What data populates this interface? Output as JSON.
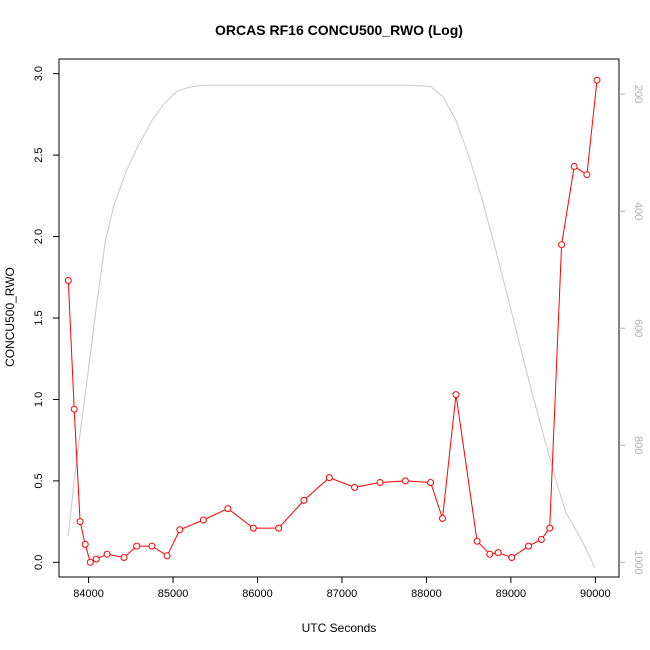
{
  "chart_data": {
    "type": "line",
    "title": "ORCAS RF16 CONCU500_RWO (Log)",
    "xlabel": "UTC Seconds",
    "ylabel": "CONCU500_RWO",
    "xlim": [
      83650,
      90280
    ],
    "ylim": [
      -0.09,
      3.09
    ],
    "x_ticks": [
      84000,
      85000,
      86000,
      87000,
      88000,
      89000,
      90000
    ],
    "y_ticks": [
      0.0,
      0.5,
      1.0,
      1.5,
      2.0,
      2.5,
      3.0
    ],
    "y_tick_labels": [
      "0.0",
      "0.5",
      "1.0",
      "1.5",
      "2.0",
      "2.5",
      "3.0"
    ],
    "y2_lim": [
      1025,
      140
    ],
    "y2_ticks": [
      200,
      400,
      600,
      800,
      1000
    ],
    "y2_tick_labels": [
      "200",
      "400",
      "600",
      "800",
      "1000"
    ],
    "series": [
      {
        "color": "#ff0000",
        "style": "line-with-open-circles",
        "x": [
          83760,
          83830,
          83900,
          83960,
          84020,
          84090,
          84220,
          84420,
          84570,
          84750,
          84930,
          85080,
          85360,
          85650,
          85950,
          86250,
          86550,
          86850,
          87150,
          87450,
          87750,
          88050,
          88190,
          88350,
          88600,
          88750,
          88850,
          89010,
          89210,
          89360,
          89460,
          89600,
          89750,
          89900,
          90020
        ],
        "y": [
          1.73,
          0.94,
          0.25,
          0.11,
          0.0,
          0.02,
          0.05,
          0.03,
          0.1,
          0.1,
          0.04,
          0.2,
          0.26,
          0.33,
          0.21,
          0.21,
          0.38,
          0.52,
          0.46,
          0.49,
          0.5,
          0.49,
          0.27,
          1.03,
          0.13,
          0.05,
          0.06,
          0.03,
          0.1,
          0.14,
          0.21,
          1.95,
          2.43,
          2.38,
          2.96
        ]
      },
      {
        "color": "#c8c8c8",
        "style": "line",
        "axis": "right",
        "x": [
          83760,
          83830,
          83900,
          83950,
          84020,
          84100,
          84200,
          84300,
          84450,
          84600,
          84750,
          84900,
          85050,
          85200,
          85350,
          87000,
          87800,
          88050,
          88200,
          88350,
          88500,
          88650,
          88800,
          88950,
          89100,
          89250,
          89400,
          89550,
          89650,
          89800,
          89900,
          90000
        ],
        "y": [
          955,
          860,
          780,
          725,
          645,
          555,
          450,
          390,
          330,
          285,
          245,
          215,
          195,
          188,
          185,
          185,
          185,
          187,
          205,
          245,
          305,
          375,
          455,
          540,
          625,
          710,
          790,
          868,
          915,
          952,
          980,
          1010
        ]
      }
    ]
  }
}
